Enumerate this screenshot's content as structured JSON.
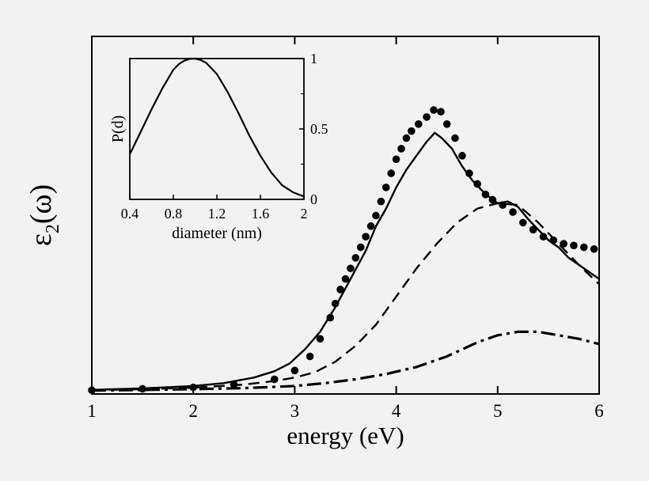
{
  "chart_data": [
    {
      "type": "line",
      "xlabel": "energy (eV)",
      "ylabel_base": "ε",
      "ylabel_sub": "2",
      "ylabel_arg": "(ω)",
      "xlim": [
        1,
        6
      ],
      "ylim": [
        0,
        1
      ],
      "x_ticks": [
        1,
        2,
        3,
        4,
        5,
        6
      ],
      "x_tick_labels": [
        "1",
        "2",
        "3",
        "4",
        "5",
        "6"
      ],
      "y_ticks_shown": false,
      "grid": false,
      "legend": "none",
      "series": [
        {
          "style": "solid",
          "x": [
            1.0,
            1.5,
            2.0,
            2.3,
            2.6,
            2.8,
            2.95,
            3.1,
            3.25,
            3.4,
            3.55,
            3.7,
            3.8,
            3.9,
            4.0,
            4.1,
            4.2,
            4.3,
            4.38,
            4.45,
            4.55,
            4.65,
            4.75,
            4.85,
            4.95,
            5.0,
            5.1,
            5.2,
            5.3,
            5.4,
            5.5,
            5.6,
            5.7,
            5.8,
            5.9,
            6.0
          ],
          "y": [
            0.005,
            0.009,
            0.016,
            0.024,
            0.04,
            0.058,
            0.08,
            0.12,
            0.17,
            0.24,
            0.32,
            0.4,
            0.47,
            0.52,
            0.58,
            0.63,
            0.67,
            0.71,
            0.735,
            0.72,
            0.69,
            0.64,
            0.6,
            0.57,
            0.545,
            0.535,
            0.54,
            0.525,
            0.49,
            0.46,
            0.43,
            0.41,
            0.38,
            0.36,
            0.34,
            0.32
          ]
        },
        {
          "style": "dashed",
          "x": [
            1.0,
            1.5,
            2.0,
            2.5,
            2.8,
            3.0,
            3.2,
            3.4,
            3.6,
            3.8,
            4.0,
            4.2,
            4.4,
            4.6,
            4.8,
            5.0,
            5.2,
            5.4,
            5.6,
            5.8,
            6.0
          ],
          "y": [
            0.004,
            0.007,
            0.011,
            0.02,
            0.03,
            0.04,
            0.055,
            0.085,
            0.13,
            0.19,
            0.27,
            0.35,
            0.42,
            0.48,
            0.52,
            0.535,
            0.53,
            0.48,
            0.42,
            0.36,
            0.305
          ]
        },
        {
          "style": "dash-dot",
          "x": [
            1.0,
            1.5,
            2.0,
            2.5,
            3.0,
            3.3,
            3.6,
            3.9,
            4.2,
            4.5,
            4.8,
            5.0,
            5.2,
            5.4,
            5.6,
            5.8,
            6.0
          ],
          "y": [
            0.003,
            0.005,
            0.007,
            0.01,
            0.016,
            0.024,
            0.035,
            0.05,
            0.07,
            0.1,
            0.14,
            0.16,
            0.17,
            0.17,
            0.16,
            0.15,
            0.135
          ]
        },
        {
          "style": "dotted-markers",
          "x": [
            1.0,
            1.5,
            2.0,
            2.4,
            2.8,
            3.0,
            3.15,
            3.25,
            3.35,
            3.4,
            3.45,
            3.5,
            3.55,
            3.6,
            3.65,
            3.7,
            3.75,
            3.8,
            3.85,
            3.9,
            3.95,
            4.0,
            4.05,
            4.1,
            4.15,
            4.22,
            4.3,
            4.37,
            4.44,
            4.5,
            4.58,
            4.65,
            4.72,
            4.8,
            4.88,
            4.95,
            5.05,
            5.15,
            5.25,
            5.35,
            5.45,
            5.55,
            5.65,
            5.75,
            5.85,
            5.95
          ],
          "y": [
            0.004,
            0.008,
            0.012,
            0.02,
            0.035,
            0.06,
            0.1,
            0.15,
            0.21,
            0.25,
            0.29,
            0.32,
            0.35,
            0.38,
            0.41,
            0.44,
            0.47,
            0.5,
            0.54,
            0.58,
            0.62,
            0.66,
            0.69,
            0.72,
            0.74,
            0.76,
            0.78,
            0.8,
            0.795,
            0.76,
            0.72,
            0.67,
            0.62,
            0.59,
            0.56,
            0.545,
            0.53,
            0.51,
            0.48,
            0.46,
            0.44,
            0.43,
            0.42,
            0.415,
            0.41,
            0.405
          ]
        }
      ]
    },
    {
      "type": "line",
      "role": "inset",
      "xlabel": "diameter (nm)",
      "ylabel": "P(d)",
      "xlim": [
        0.4,
        2
      ],
      "ylim": [
        0,
        1
      ],
      "x_ticks": [
        0.4,
        0.8,
        1.2,
        1.6,
        2.0
      ],
      "x_tick_labels": [
        "0.4",
        "0.8",
        "1.2",
        "1.6",
        "2"
      ],
      "y_ticks": [
        0,
        0.5,
        1
      ],
      "y_tick_labels": [
        "0",
        "0.5",
        "1"
      ],
      "y_axis_side": "right",
      "series": [
        {
          "style": "solid",
          "x": [
            0.4,
            0.5,
            0.6,
            0.7,
            0.8,
            0.85,
            0.9,
            0.95,
            1.0,
            1.05,
            1.1,
            1.2,
            1.3,
            1.4,
            1.5,
            1.6,
            1.7,
            1.8,
            1.9,
            2.0
          ],
          "y": [
            0.32,
            0.48,
            0.64,
            0.79,
            0.92,
            0.96,
            0.985,
            0.998,
            1.0,
            0.99,
            0.97,
            0.89,
            0.76,
            0.61,
            0.45,
            0.31,
            0.19,
            0.1,
            0.05,
            0.02
          ]
        }
      ]
    }
  ]
}
